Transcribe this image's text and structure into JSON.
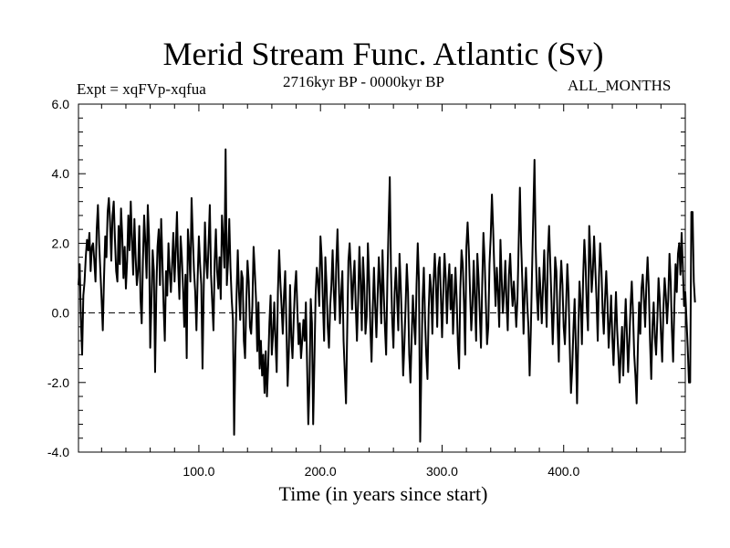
{
  "chart_data": {
    "type": "line",
    "title": "Merid Stream Func. Atlantic (Sv)",
    "subtitle": "2716kyr BP - 0000kyr BP",
    "experiment_label": "Expt = xqFVp-xqfua",
    "months_label": "ALL_MONTHS",
    "xlabel": "Time (in years since start)",
    "ylabel": "",
    "xlim": [
      1,
      500
    ],
    "ylim": [
      -4.0,
      6.0
    ],
    "x_ticks": [
      100,
      200,
      300,
      400
    ],
    "x_tick_labels": [
      "100.0",
      "200.0",
      "300.0",
      "400.0"
    ],
    "y_ticks": [
      -4,
      -2,
      0,
      2,
      4,
      6
    ],
    "y_tick_labels": [
      "-4.0",
      "-2.0",
      "0.0",
      "2.0",
      "4.0",
      "6.0"
    ],
    "reference_line": {
      "y": 0.0,
      "style": "dashed"
    },
    "series": [
      {
        "name": "Merid Stream Func. Atlantic",
        "x_start": 1,
        "x_step": 1,
        "values": [
          0.8,
          1.4,
          -0.2,
          -1.2,
          0.5,
          0.9,
          1.6,
          2.1,
          1.8,
          2.3,
          1.2,
          1.9,
          2.0,
          1.5,
          0.9,
          2.4,
          3.1,
          2.0,
          1.2,
          0.4,
          -0.5,
          1.0,
          2.2,
          1.6,
          2.9,
          3.3,
          2.6,
          1.5,
          2.8,
          3.2,
          2.1,
          1.2,
          0.9,
          2.5,
          1.4,
          3.0,
          2.2,
          1.0,
          1.9,
          0.7,
          1.5,
          2.8,
          1.8,
          3.2,
          2.1,
          1.1,
          2.7,
          1.6,
          0.8,
          1.2,
          2.5,
          0.4,
          -0.3,
          1.5,
          2.8,
          2.0,
          1.0,
          3.1,
          2.2,
          -1.0,
          0.3,
          1.8,
          1.2,
          -1.7,
          0.6,
          1.9,
          2.4,
          0.8,
          2.7,
          1.5,
          0.2,
          -0.8,
          1.2,
          0.5,
          2.0,
          1.2,
          0.6,
          1.4,
          2.3,
          0.9,
          1.8,
          2.9,
          1.3,
          0.4,
          2.2,
          1.6,
          0.7,
          -0.4,
          1.1,
          -1.3,
          2.4,
          1.8,
          0.9,
          3.3,
          2.2,
          1.2,
          0.6,
          -0.5,
          1.0,
          2.2,
          1.4,
          0.8,
          -1.6,
          0.7,
          2.6,
          1.5,
          1.0,
          2.0,
          3.1,
          1.1,
          0.3,
          -0.5,
          1.5,
          2.4,
          1.2,
          0.7,
          1.6,
          0.4,
          2.8,
          2.1,
          1.3,
          4.7,
          0.8,
          1.5,
          2.7,
          1.3,
          0.4,
          -0.2,
          -3.5,
          -1.2,
          0.5,
          1.8,
          0.6,
          -0.2,
          1.2,
          1.0,
          -0.8,
          -1.3,
          0.3,
          1.5,
          0.9,
          -0.4,
          -0.6,
          0.2,
          1.9,
          1.2,
          0.4,
          -1.1,
          0.3,
          -1.6,
          -0.8,
          -1.8,
          -1.2,
          -2.3,
          -1.1,
          -2.4,
          -1.5,
          -0.3,
          0.5,
          -1.2,
          -0.6,
          0.3,
          -0.8,
          -1.7,
          0.6,
          1.8,
          0.9,
          0.2,
          -0.6,
          0.5,
          1.2,
          -0.4,
          -2.1,
          -1.1,
          0.8,
          -0.7,
          -1.3,
          -0.2,
          0.7,
          1.2,
          0.1,
          -0.9,
          -0.3,
          -1.3,
          -0.8,
          -0.2,
          -0.8,
          0.3,
          -1.5,
          -3.2,
          -2.0,
          0.4,
          -0.3,
          -3.2,
          -1.4,
          0.5,
          1.3,
          0.9,
          0.2,
          2.2,
          1.6,
          0.3,
          -0.8,
          1.6,
          0.8,
          -0.4,
          -1.0,
          0.2,
          0.8,
          1.8,
          0.6,
          -0.2,
          1.4,
          2.4,
          1.0,
          -0.3,
          0.5,
          1.2,
          -0.8,
          -1.7,
          -2.6,
          -0.5,
          1.5,
          2.0,
          1.2,
          0.1,
          0.9,
          1.5,
          0.2,
          -0.8,
          0.4,
          1.9,
          0.9,
          -0.5,
          1.6,
          0.8,
          -0.6,
          -0.1,
          2.0,
          1.0,
          -0.4,
          -1.4,
          0.1,
          1.3,
          0.2,
          -0.7,
          0.5,
          1.6,
          0.8,
          -0.3,
          1.8,
          0.6,
          -0.4,
          -1.2,
          0.9,
          2.5,
          3.9,
          1.2,
          -0.2,
          -1.0,
          0.6,
          1.3,
          0.4,
          -0.5,
          1.7,
          0.8,
          -0.4,
          -1.8,
          -0.9,
          0.2,
          1.4,
          0.6,
          -1.2,
          -2.0,
          -0.7,
          0.5,
          -0.3,
          -0.9,
          0.8,
          2.0,
          0.9,
          -3.7,
          -1.5,
          0.4,
          1.3,
          -0.2,
          -1.2,
          -1.9,
          0.1,
          1.1,
          0.7,
          -0.6,
          0.9,
          1.7,
          0.8,
          -0.4,
          1.3,
          1.6,
          0.5,
          -0.7,
          0.6,
          1.7,
          1.0,
          -0.3,
          0.8,
          1.4,
          0.1,
          1.1,
          -0.6,
          0.3,
          1.3,
          0.4,
          -0.9,
          -1.6,
          0.7,
          1.8,
          1.4,
          0.3,
          -1.2,
          1.9,
          2.6,
          1.8,
          0.6,
          -0.5,
          0.2,
          1.5,
          0.4,
          -0.8,
          1.7,
          1.0,
          0.0,
          -1.0,
          0.8,
          2.3,
          1.5,
          0.3,
          -0.9,
          -0.4,
          1.4,
          2.2,
          3.4,
          2.4,
          1.2,
          0.2,
          1.3,
          0.6,
          -0.4,
          2.1,
          1.0,
          0.0,
          0.6,
          1.5,
          0.3,
          -0.5,
          1.1,
          1.7,
          0.8,
          0.2,
          0.9,
          0.3,
          -0.4,
          0.4,
          2.0,
          3.6,
          2.0,
          0.9,
          -0.6,
          0.6,
          1.3,
          0.3,
          -0.4,
          -1.8,
          -0.5,
          1.2,
          2.8,
          4.4,
          1.9,
          0.5,
          -0.2,
          1.3,
          0.6,
          -0.3,
          0.8,
          1.8,
          0.6,
          -0.4,
          1.7,
          2.5,
          1.4,
          0.3,
          -0.9,
          0.2,
          1.6,
          1.2,
          -0.3,
          -1.4,
          0.6,
          1.5,
          0.8,
          -0.4,
          -0.9,
          0.2,
          1.4,
          0.6,
          -1.0,
          -2.3,
          -1.6,
          -0.5,
          0.4,
          -1.0,
          -2.6,
          -0.6,
          0.9,
          0.3,
          -0.9,
          1.0,
          2.1,
          1.4,
          0.2,
          -0.5,
          2.5,
          1.7,
          0.6,
          1.2,
          2.2,
          1.3,
          0.4,
          -0.8,
          1.0,
          2.0,
          1.3,
          0.1,
          -0.6,
          0.4,
          1.2,
          0.3,
          -1.0,
          -0.3,
          0.5,
          -0.7,
          -1.5,
          -0.4,
          0.6,
          -0.5,
          -1.2,
          -2.0,
          -1.1,
          -0.4,
          -1.8,
          -0.6,
          0.4,
          -0.6,
          -1.7,
          -0.8,
          0.2,
          0.9,
          0.0,
          -1.2,
          -1.8,
          -2.6,
          -1.0,
          0.3,
          -0.6,
          0.7,
          1.1,
          0.4,
          -0.4,
          0.8,
          1.6,
          0.7,
          -0.8,
          -1.9,
          -0.4,
          0.3,
          -0.7,
          -1.2,
          -0.2,
          1.0,
          0.4,
          -0.6,
          -1.4,
          0.1,
          1.0,
          0.5,
          -0.3,
          0.4,
          1.7,
          0.9,
          -0.5,
          -1.4,
          0.2,
          1.4,
          0.6,
          1.7,
          2.0,
          1.1,
          2.3,
          1.3,
          0.2,
          0.6,
          -0.2,
          -1.0,
          -2.0,
          -2.0,
          2.9,
          2.9,
          0.9,
          0.3
        ]
      }
    ]
  }
}
